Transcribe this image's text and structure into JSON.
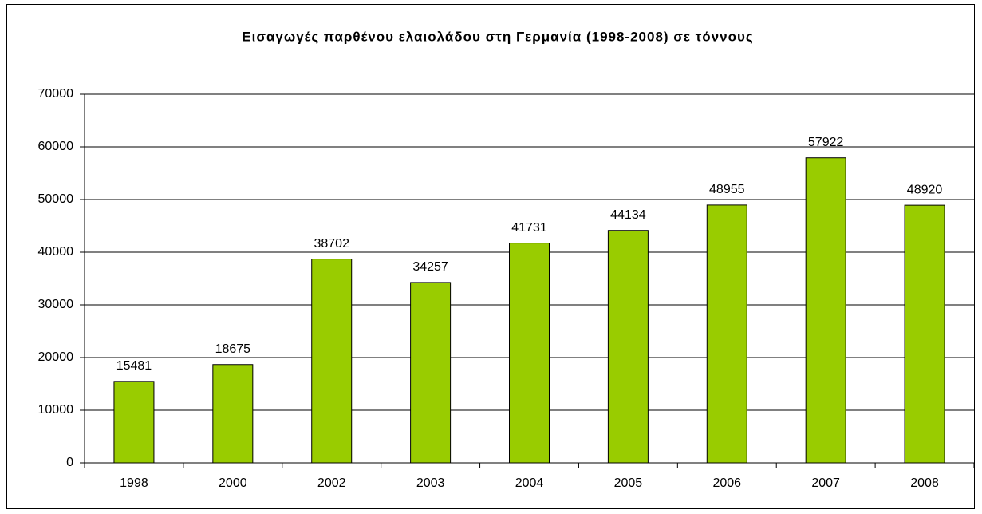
{
  "chart_data": {
    "type": "bar",
    "title": "Εισαγωγές παρθένου ελαιολάδου στη Γερμανία (1998-2008) σε τόννους",
    "categories": [
      "1998",
      "2000",
      "2002",
      "2003",
      "2004",
      "2005",
      "2006",
      "2007",
      "2008"
    ],
    "values": [
      15481,
      18675,
      38702,
      34257,
      41731,
      44134,
      48955,
      57922,
      48920
    ],
    "color": "#99cc00",
    "ylim": [
      0,
      70000
    ],
    "yticks": [
      0,
      10000,
      20000,
      30000,
      40000,
      50000,
      60000,
      70000
    ],
    "grid": true
  }
}
